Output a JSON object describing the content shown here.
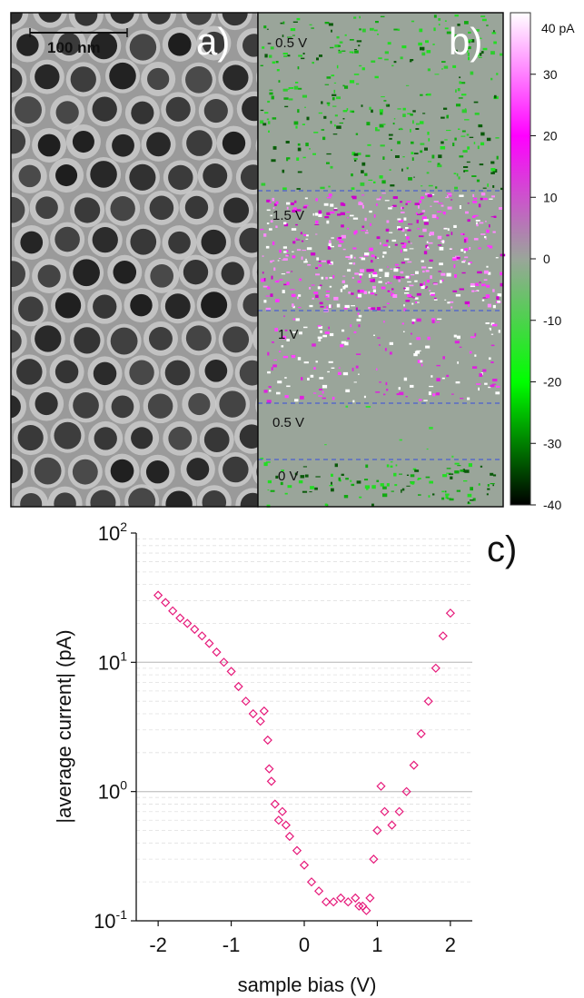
{
  "panel_a": {
    "label": "a)",
    "scalebar_label": "100 nm"
  },
  "panel_b": {
    "label": "b)",
    "bias_labels": [
      "- 0.5 V",
      "1.5 V",
      "1 V",
      "0.5 V",
      "0 V"
    ],
    "colorbar": {
      "top_label": "40 pA",
      "ticks": [
        30,
        20,
        10,
        0,
        -10,
        -20,
        -30,
        -40
      ],
      "range": [
        -40,
        40
      ],
      "colors": {
        "max": "#ffffff",
        "mid_pos": "#ff00ff",
        "zero": "#9aa59a",
        "mid_neg": "#00ff00",
        "min": "#000000"
      }
    }
  },
  "panel_c": {
    "label": "c)",
    "accent_color": "#e6197a"
  },
  "chart_data": {
    "type": "scatter",
    "xlabel": "sample bias (V)",
    "ylabel": "|average current| (pA)",
    "xlim": [
      -2.3,
      2.3
    ],
    "ylim": [
      0.1,
      100
    ],
    "yscale": "log",
    "grid": true,
    "x_ticks": [
      "-2",
      "-1",
      "0",
      "1",
      "2"
    ],
    "y_ticks": [
      {
        "base": "10",
        "exp": "-1"
      },
      {
        "base": "10",
        "exp": "0"
      },
      {
        "base": "10",
        "exp": "1"
      },
      {
        "base": "10",
        "exp": "2"
      }
    ],
    "series": [
      {
        "x": [
          -2.0,
          -1.9,
          -1.8,
          -1.7,
          -1.6,
          -1.5,
          -1.4,
          -1.3,
          -1.2,
          -1.1,
          -1.0,
          -0.9,
          -0.8,
          -0.7,
          -0.6,
          -0.55,
          -0.5,
          -0.48,
          -0.45,
          -0.4,
          -0.35,
          -0.3,
          -0.25,
          -0.2,
          -0.1,
          0.0,
          0.1,
          0.2,
          0.3,
          0.4,
          0.5,
          0.6,
          0.7,
          0.75,
          0.8,
          0.85,
          0.9,
          0.95,
          1.0,
          1.05,
          1.1,
          1.2,
          1.3,
          1.4,
          1.5,
          1.6,
          1.7,
          1.8,
          1.9,
          2.0
        ],
        "y": [
          33,
          29,
          25,
          22,
          20,
          18,
          16,
          14,
          12,
          10,
          8.5,
          6.5,
          5.0,
          4.0,
          3.5,
          4.2,
          2.5,
          1.5,
          1.2,
          0.8,
          0.6,
          0.7,
          0.55,
          0.45,
          0.35,
          0.27,
          0.2,
          0.17,
          0.14,
          0.14,
          0.15,
          0.14,
          0.15,
          0.13,
          0.13,
          0.12,
          0.15,
          0.3,
          0.5,
          1.1,
          0.7,
          0.55,
          0.7,
          1.0,
          1.6,
          2.8,
          5.0,
          9.0,
          16,
          24
        ]
      }
    ]
  }
}
